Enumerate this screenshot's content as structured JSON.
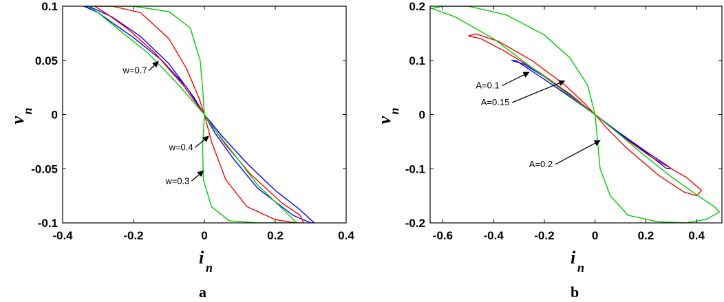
{
  "chart_data": [
    {
      "type": "line",
      "panel_label": "a",
      "xlabel": {
        "var": "i",
        "sub": "n"
      },
      "ylabel": {
        "var": "v",
        "sub": "n"
      },
      "xlim": [
        -0.4,
        0.4
      ],
      "ylim": [
        -0.1,
        0.1
      ],
      "xticks": [
        -0.4,
        -0.2,
        0,
        0.2,
        0.4
      ],
      "xtick_labels": [
        "-0.4",
        "-0.2",
        "0",
        "0.2",
        "0.4"
      ],
      "yticks": [
        -0.1,
        -0.05,
        0,
        0.05,
        0.1
      ],
      "ytick_labels": [
        "-0.1",
        "-0.05",
        "0",
        "0.05",
        "0.1"
      ],
      "grid": false,
      "series": [
        {
          "color": "#0000ff",
          "points": [
            [
              -0.34,
              0.1
            ],
            [
              -0.3,
              0.094
            ],
            [
              -0.2,
              0.071
            ],
            [
              -0.12,
              0.05
            ],
            [
              -0.05,
              0.025
            ],
            [
              0,
              0
            ],
            [
              0.05,
              -0.02
            ],
            [
              0.12,
              -0.045
            ],
            [
              0.2,
              -0.07
            ],
            [
              0.27,
              -0.088
            ],
            [
              0.3,
              -0.097
            ],
            [
              0.31,
              -0.1
            ],
            [
              0.3,
              -0.1
            ],
            [
              0.25,
              -0.093
            ],
            [
              0.15,
              -0.068
            ],
            [
              0.08,
              -0.04
            ],
            [
              0.03,
              -0.017
            ],
            [
              0,
              0
            ],
            [
              -0.03,
              0.016
            ],
            [
              -0.1,
              0.047
            ],
            [
              -0.18,
              0.072
            ],
            [
              -0.26,
              0.09
            ],
            [
              -0.32,
              0.099
            ],
            [
              -0.34,
              0.1
            ]
          ]
        },
        {
          "color": "#ff0000",
          "points": [
            [
              -0.31,
              0.1
            ],
            [
              -0.26,
              0.1
            ],
            [
              -0.18,
              0.094
            ],
            [
              -0.1,
              0.07
            ],
            [
              -0.05,
              0.042
            ],
            [
              -0.015,
              0.015
            ],
            [
              0,
              0
            ],
            [
              0.02,
              -0.025
            ],
            [
              0.06,
              -0.06
            ],
            [
              0.12,
              -0.085
            ],
            [
              0.2,
              -0.097
            ],
            [
              0.26,
              -0.1
            ],
            [
              0.28,
              -0.1
            ],
            [
              0.27,
              -0.093
            ],
            [
              0.22,
              -0.082
            ],
            [
              0.13,
              -0.055
            ],
            [
              0.06,
              -0.028
            ],
            [
              0,
              0
            ],
            [
              -0.06,
              0.027
            ],
            [
              -0.14,
              0.057
            ],
            [
              -0.22,
              0.08
            ],
            [
              -0.28,
              0.094
            ],
            [
              -0.31,
              0.1
            ]
          ]
        },
        {
          "color": "#00cc00",
          "points": [
            [
              -0.33,
              0.1
            ],
            [
              -0.2,
              0.1
            ],
            [
              -0.1,
              0.095
            ],
            [
              -0.04,
              0.08
            ],
            [
              -0.012,
              0.05
            ],
            [
              -0.004,
              0.02
            ],
            [
              0,
              0
            ],
            [
              -0.005,
              -0.03
            ],
            [
              -0.003,
              -0.06
            ],
            [
              0.02,
              -0.085
            ],
            [
              0.07,
              -0.098
            ],
            [
              0.15,
              -0.1
            ],
            [
              0.26,
              -0.1
            ],
            [
              0.23,
              -0.09
            ],
            [
              0.15,
              -0.065
            ],
            [
              0.08,
              -0.035
            ],
            [
              0.02,
              -0.01
            ],
            [
              0,
              0
            ],
            [
              -0.08,
              0.03
            ],
            [
              -0.16,
              0.057
            ],
            [
              -0.24,
              0.078
            ],
            [
              -0.3,
              0.094
            ],
            [
              -0.33,
              0.1
            ]
          ]
        }
      ],
      "annotations": [
        {
          "text": "w=0.7",
          "text_at": [
            -0.23,
            0.038
          ],
          "arrow_to": [
            -0.13,
            0.049
          ]
        },
        {
          "text": "w=0.4",
          "text_at": [
            -0.1,
            -0.033
          ],
          "arrow_to": [
            0.012,
            -0.02
          ]
        },
        {
          "text": "w=0.3",
          "text_at": [
            -0.11,
            -0.064
          ],
          "arrow_to": [
            -0.003,
            -0.052
          ]
        }
      ]
    },
    {
      "type": "line",
      "panel_label": "b",
      "xlabel": {
        "var": "i",
        "sub": "n"
      },
      "ylabel": {
        "var": "v",
        "sub": "n"
      },
      "xlim": [
        -0.65,
        0.5
      ],
      "ylim": [
        -0.2,
        0.2
      ],
      "xticks": [
        -0.6,
        -0.4,
        -0.2,
        0,
        0.2,
        0.4
      ],
      "xtick_labels": [
        "-0.6",
        "-0.4",
        "-0.2",
        "0",
        "0.2",
        "0.4"
      ],
      "yticks": [
        -0.2,
        -0.1,
        0,
        0.1,
        0.2
      ],
      "ytick_labels": [
        "-0.2",
        "-0.1",
        "0",
        "0.1",
        "0.2"
      ],
      "grid": false,
      "series": [
        {
          "color": "#0000ff",
          "points": [
            [
              -0.33,
              0.1
            ],
            [
              -0.31,
              0.099
            ],
            [
              -0.2,
              0.065
            ],
            [
              -0.1,
              0.033
            ],
            [
              0,
              0
            ],
            [
              0.1,
              -0.035
            ],
            [
              0.2,
              -0.068
            ],
            [
              0.28,
              -0.093
            ],
            [
              0.3,
              -0.1
            ],
            [
              0.28,
              -0.099
            ],
            [
              0.2,
              -0.07
            ],
            [
              0.1,
              -0.036
            ],
            [
              0,
              0
            ],
            [
              -0.1,
              0.037
            ],
            [
              -0.2,
              0.07
            ],
            [
              -0.28,
              0.093
            ],
            [
              -0.33,
              0.1
            ]
          ]
        },
        {
          "color": "#ff0000",
          "points": [
            [
              -0.5,
              0.145
            ],
            [
              -0.47,
              0.149
            ],
            [
              -0.38,
              0.135
            ],
            [
              -0.25,
              0.1
            ],
            [
              -0.12,
              0.055
            ],
            [
              -0.04,
              0.02
            ],
            [
              0,
              0
            ],
            [
              0.04,
              -0.022
            ],
            [
              0.12,
              -0.06
            ],
            [
              0.25,
              -0.112
            ],
            [
              0.35,
              -0.143
            ],
            [
              0.4,
              -0.15
            ],
            [
              0.42,
              -0.14
            ],
            [
              0.36,
              -0.116
            ],
            [
              0.22,
              -0.078
            ],
            [
              0.1,
              -0.038
            ],
            [
              0,
              0
            ],
            [
              -0.1,
              0.038
            ],
            [
              -0.22,
              0.078
            ],
            [
              -0.36,
              0.118
            ],
            [
              -0.45,
              0.14
            ],
            [
              -0.5,
              0.145
            ]
          ]
        },
        {
          "color": "#00cc00",
          "points": [
            [
              -0.65,
              0.195
            ],
            [
              -0.6,
              0.2
            ],
            [
              -0.5,
              0.2
            ],
            [
              -0.35,
              0.184
            ],
            [
              -0.2,
              0.147
            ],
            [
              -0.1,
              0.105
            ],
            [
              -0.03,
              0.055
            ],
            [
              0,
              0
            ],
            [
              0.01,
              -0.05
            ],
            [
              0.02,
              -0.1
            ],
            [
              0.06,
              -0.15
            ],
            [
              0.13,
              -0.186
            ],
            [
              0.25,
              -0.198
            ],
            [
              0.36,
              -0.2
            ],
            [
              0.44,
              -0.193
            ],
            [
              0.49,
              -0.18
            ],
            [
              0.47,
              -0.17
            ],
            [
              0.4,
              -0.148
            ],
            [
              0.3,
              -0.115
            ],
            [
              0.18,
              -0.07
            ],
            [
              0.08,
              -0.03
            ],
            [
              0,
              0
            ],
            [
              -0.1,
              0.035
            ],
            [
              -0.25,
              0.087
            ],
            [
              -0.4,
              0.14
            ],
            [
              -0.55,
              0.18
            ],
            [
              -0.65,
              0.197
            ]
          ]
        }
      ],
      "annotations": [
        {
          "text": "A=0.1",
          "text_at": [
            -0.47,
            0.048
          ],
          "arrow_to": [
            -0.26,
            0.078
          ]
        },
        {
          "text": "A=0.15",
          "text_at": [
            -0.45,
            0.017
          ],
          "arrow_to": [
            -0.12,
            0.062
          ]
        },
        {
          "text": "A=0.2",
          "text_at": [
            -0.26,
            -0.097
          ],
          "arrow_to": [
            0.02,
            -0.048
          ]
        }
      ]
    }
  ]
}
